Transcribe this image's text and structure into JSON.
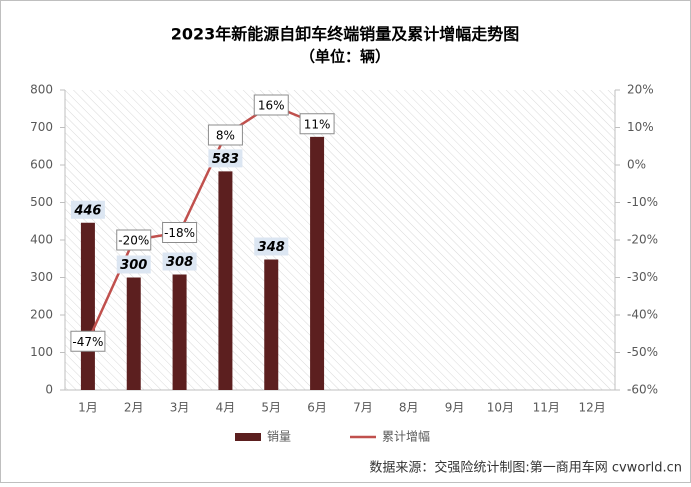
{
  "chart_data": {
    "type": "bar-line",
    "title": "2023年新能源自卸车终端销量及累计增幅走势图",
    "subtitle": "（单位：辆）",
    "categories": [
      "1月",
      "2月",
      "3月",
      "4月",
      "5月",
      "6月",
      "7月",
      "8月",
      "9月",
      "10月",
      "11月",
      "12月"
    ],
    "series": [
      {
        "name": "销量",
        "color": "#5c1f1f",
        "type": "bar",
        "values": [
          446,
          300,
          308,
          583,
          348,
          675,
          null,
          null,
          null,
          null,
          null,
          null
        ]
      },
      {
        "name": "累计增幅",
        "color": "#c0504d",
        "type": "line",
        "axis": "y2",
        "values": [
          -47,
          -20,
          -18,
          8,
          16,
          11,
          null,
          null,
          null,
          null,
          null,
          null
        ],
        "value_labels": [
          "-47%",
          "-20%",
          "-18%",
          "8%",
          "16%",
          "11%",
          null,
          null,
          null,
          null,
          null,
          null
        ]
      }
    ],
    "ylim": [
      0,
      800
    ],
    "yticks": [
      0,
      100,
      200,
      300,
      400,
      500,
      600,
      700,
      800
    ],
    "y2lim": [
      -60,
      20
    ],
    "y2ticks": [
      {
        "value": -60,
        "label": "-60%"
      },
      {
        "value": -50,
        "label": "-50%"
      },
      {
        "value": -40,
        "label": "-40%"
      },
      {
        "value": -30,
        "label": "-30%"
      },
      {
        "value": -20,
        "label": "-20%"
      },
      {
        "value": -10,
        "label": "-10%"
      },
      {
        "value": 0,
        "label": "0%"
      },
      {
        "value": 10,
        "label": "10%"
      },
      {
        "value": 20,
        "label": "20%"
      }
    ],
    "legend": "bottom",
    "source": "数据来源：交强险统计制图:第一商用车网 cvworld.cn"
  }
}
